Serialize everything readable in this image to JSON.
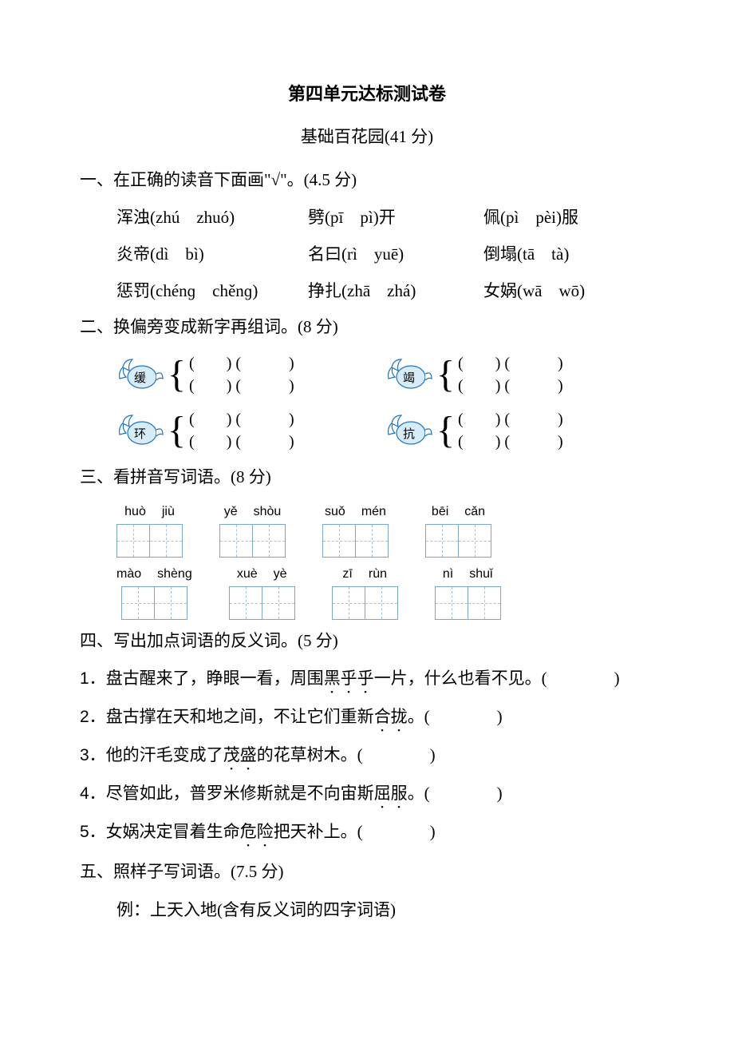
{
  "title": "第四单元达标测试卷",
  "subtitle": "基础百花园(41 分)",
  "q1": {
    "head": "一、在正确的读音下面画\"√\"。(4.5 分)",
    "rows": [
      [
        {
          "hanzi": "浑浊",
          "p1": "zhú",
          "p2": "zhuó",
          "suffix": ""
        },
        {
          "hanzi": "劈",
          "p1": "pī",
          "p2": "pì",
          "suffix": "开"
        },
        {
          "hanzi": "佩",
          "p1": "pì",
          "p2": "pèi",
          "suffix": "服"
        }
      ],
      [
        {
          "hanzi": "炎帝",
          "p1": "dì",
          "p2": "bì",
          "suffix": ""
        },
        {
          "hanzi": "名曰",
          "p1": "rì",
          "p2": "yuē",
          "suffix": ""
        },
        {
          "hanzi": "倒塌",
          "p1": "tā",
          "p2": "tà",
          "suffix": ""
        }
      ],
      [
        {
          "hanzi": "惩罚",
          "p1": "chénɡ",
          "p2": "chěnɡ",
          "suffix": ""
        },
        {
          "hanzi": "挣扎",
          "p1": "zhā",
          "p2": "zhá",
          "suffix": ""
        },
        {
          "hanzi": "女娲",
          "p1": "wā",
          "p2": "wō",
          "suffix": ""
        }
      ]
    ]
  },
  "q2": {
    "head": "二、换偏旁变成新字再组词。(8 分)",
    "chars": [
      "缓",
      "竭",
      "环",
      "抗"
    ],
    "slot": "(　　) (　　　)",
    "leaf_stroke": "#1f74c4",
    "leaf_fill": "#ffffff",
    "circle_fill": "#d7ecf9"
  },
  "q3": {
    "head": "三、看拼音写词语。(8 分)",
    "rows": [
      [
        {
          "p1": "huò",
          "p2": "jiù"
        },
        {
          "p1": "yě",
          "p2": "shòu"
        },
        {
          "p1": "suǒ",
          "p2": "mén"
        },
        {
          "p1": "bēi",
          "p2": "cǎn"
        }
      ],
      [
        {
          "p1": "mào",
          "p2": "shènɡ"
        },
        {
          "p1": "xuè",
          "p2": "yè"
        },
        {
          "p1": "zī",
          "p2": "rùn"
        },
        {
          "p1": "nì",
          "p2": "shuǐ"
        }
      ]
    ],
    "box_border": "#7aa8c7",
    "box_dash": "#9fc4db"
  },
  "q4": {
    "head": "四、写出加点词语的反义词。(5 分)",
    "items": [
      {
        "idx": "1．",
        "pre": "盘古醒来了，睁眼一看，周围",
        "em": "黑乎乎",
        "post": "一片，什么也看不见。(　　　　)"
      },
      {
        "idx": "2．",
        "pre": "盘古撑在天和地之间，不让它们重新",
        "em": "合拢",
        "post": "。(　　　　)"
      },
      {
        "idx": "3．",
        "pre": "他的汗毛变成了",
        "em": "茂盛",
        "post": "的花草树木。(　　　　)"
      },
      {
        "idx": "4．",
        "pre": "尽管如此，普罗米修斯就是不向宙斯",
        "em": "屈服",
        "post": "。(　　　　)"
      },
      {
        "idx": "5．",
        "pre": "女娲决定冒着生命",
        "em": "危险",
        "post": "把天补上。(　　　　)"
      }
    ]
  },
  "q5": {
    "head": "五、照样子写词语。(7.5 分)",
    "example": "例：上天入地(含有反义词的四字词语)"
  }
}
